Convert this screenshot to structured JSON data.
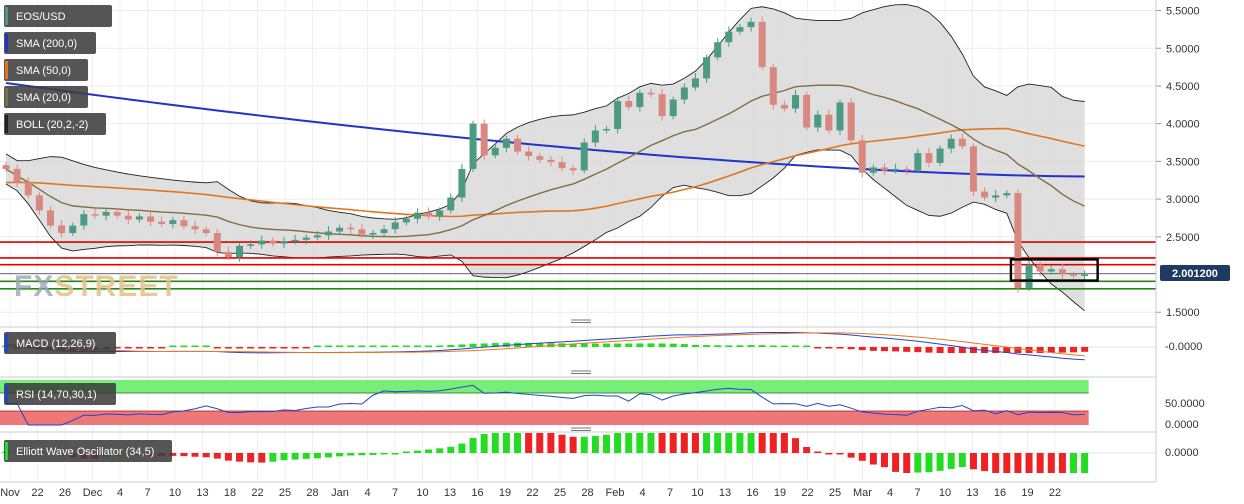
{
  "chart_data": {
    "type": "candlestick",
    "symbol": "EOS/USD",
    "current_price": "2.001200",
    "watermark": {
      "fx": "FX",
      "street": "STREET"
    },
    "indicator_labels": [
      "EOS/USD",
      "SMA (200,0)",
      "SMA (50,0)",
      "SMA (20,0)",
      "BOLL (20,2,-2)"
    ],
    "colors": {
      "up": "#4d9a82",
      "down": "#d98880",
      "sma200": "#2233cc",
      "sma50": "#dd7722",
      "sma20": "#807040",
      "boll_fill": "#d9d9d9",
      "boll_line": "#222222",
      "hline_red": "#dd0000",
      "hline_green": "#228811",
      "hline_gray": "#333333",
      "macd_line": "#2244cc",
      "macd_signal": "#ee7722",
      "hist_up": "#22dd22",
      "hist_down": "#ee2222",
      "rsi_line": "#2244cc",
      "rsi_over": "#77ee77",
      "rsi_under": "#ee7777"
    },
    "price_axis": {
      "ticks": [
        "5.5000",
        "5.0000",
        "4.5000",
        "4.0000",
        "3.5000",
        "3.0000",
        "2.5000",
        "1.5000"
      ],
      "range": [
        1.45,
        5.6
      ]
    },
    "x_ticks": [
      "Nov",
      "22",
      "26",
      "Dec",
      "4",
      "7",
      "10",
      "13",
      "18",
      "22",
      "25",
      "28",
      "Jan",
      "4",
      "7",
      "10",
      "13",
      "16",
      "19",
      "22",
      "25",
      "28",
      "Feb",
      "4",
      "7",
      "10",
      "13",
      "16",
      "19",
      "22",
      "25",
      "Mar",
      "4",
      "7",
      "10",
      "13",
      "16",
      "19",
      "22"
    ],
    "horizontal_levels": [
      {
        "value": 2.43,
        "color": "red"
      },
      {
        "value": 2.22,
        "color": "red"
      },
      {
        "value": 2.13,
        "color": "red"
      },
      {
        "value": 2.01,
        "color": "gray"
      },
      {
        "value": 1.91,
        "color": "green"
      },
      {
        "value": 1.81,
        "color": "green"
      }
    ],
    "highlight_box": {
      "x_range": [
        "Mar 12",
        "Mar 19"
      ],
      "y_range": [
        1.92,
        2.2
      ]
    },
    "close_series": [
      3.4,
      3.22,
      3.05,
      2.85,
      2.65,
      2.55,
      2.65,
      2.8,
      2.78,
      2.83,
      2.78,
      2.73,
      2.77,
      2.7,
      2.67,
      2.72,
      2.64,
      2.6,
      2.55,
      2.3,
      2.23,
      2.38,
      2.4,
      2.45,
      2.41,
      2.44,
      2.46,
      2.49,
      2.52,
      2.57,
      2.62,
      2.6,
      2.53,
      2.55,
      2.6,
      2.69,
      2.74,
      2.82,
      2.77,
      2.85,
      3.02,
      3.4,
      4.0,
      3.58,
      3.68,
      3.8,
      3.63,
      3.57,
      3.52,
      3.49,
      3.41,
      3.38,
      3.75,
      3.91,
      3.93,
      4.3,
      4.22,
      4.41,
      4.39,
      4.1,
      4.32,
      4.48,
      4.6,
      4.88,
      5.08,
      5.22,
      5.28,
      5.35,
      4.75,
      4.25,
      4.2,
      4.38,
      3.95,
      4.12,
      3.91,
      4.28,
      3.78,
      3.35,
      3.42,
      3.38,
      3.4,
      3.38,
      3.61,
      3.48,
      3.67,
      3.8,
      3.7,
      3.1,
      3.02,
      3.05,
      3.08,
      1.82,
      2.13,
      2.04,
      2.07,
      2.0,
      1.98,
      2.0
    ],
    "ma_values": {
      "sma200_start": 4.54,
      "sma200_end": 3.3,
      "sma50_end": 3.84,
      "sma20_end": 2.95
    },
    "macd": {
      "label": "MACD (12,26,9)",
      "tick": "-0.0000"
    },
    "rsi": {
      "label": "RSI (14,70,30,1)",
      "ticks": [
        "50.0000",
        "0.0000"
      ],
      "last": 27
    },
    "ewo": {
      "label": "Elliott Wave Oscillator (34,5)",
      "tick": "0.0000"
    }
  }
}
